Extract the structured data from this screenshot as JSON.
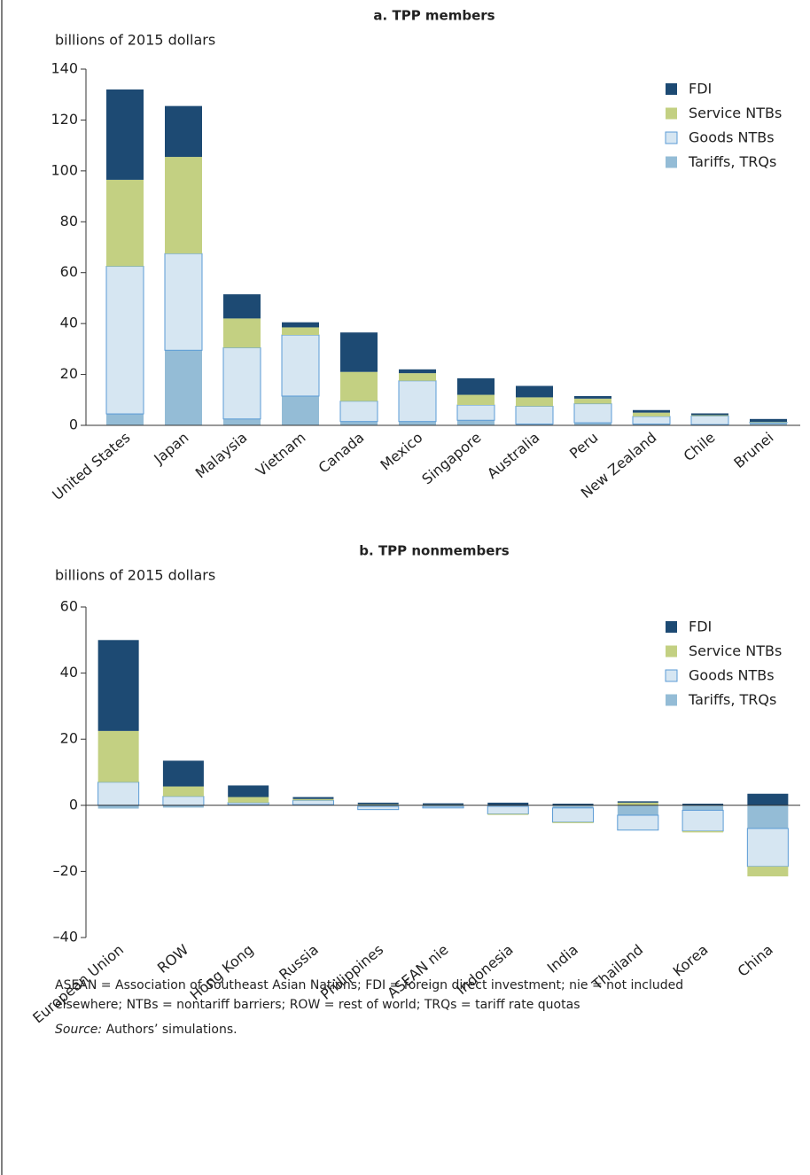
{
  "chart_data": [
    {
      "type": "stacked_bar",
      "title": "a. TPP members",
      "y_label": "billions of 2015 dollars",
      "categories": [
        "United States",
        "Japan",
        "Malaysia",
        "Vietnam",
        "Canada",
        "Mexico",
        "Singapore",
        "Australia",
        "Peru",
        "New Zealand",
        "Chile",
        "Brunei"
      ],
      "series": [
        {
          "name": "Tariffs, TRQs",
          "color": "#94bcd6",
          "values": [
            4.5,
            29.5,
            2.5,
            11.5,
            1.5,
            1.5,
            2,
            0.5,
            1,
            0.5,
            0.3,
            1
          ]
        },
        {
          "name": "Goods NTBs",
          "color": "#d6e6f2",
          "values": [
            58,
            38,
            28,
            24,
            8,
            16,
            6,
            7,
            7.5,
            3,
            3.4,
            0.2
          ]
        },
        {
          "name": "Service NTBs",
          "color": "#c3d082",
          "values": [
            34,
            38,
            11.5,
            3,
            11.5,
            3,
            4,
            3.5,
            2,
            1.5,
            0.3,
            0.2
          ]
        },
        {
          "name": "FDI",
          "color": "#1d4a73",
          "values": [
            35.5,
            20,
            9.5,
            2,
            15.5,
            1.5,
            6.5,
            4.5,
            1,
            1,
            0.7,
            1.1
          ]
        }
      ],
      "ylim": [
        0,
        140
      ],
      "yticks": [
        0,
        20,
        40,
        60,
        80,
        100,
        120,
        140
      ],
      "legend": "upper right"
    },
    {
      "type": "stacked_bar",
      "title": "b. TPP nonmembers",
      "y_label": "billions of 2015 dollars",
      "categories": [
        "European Union",
        "ROW",
        "Hong Kong",
        "Russia",
        "Philippines",
        "ASEAN nie",
        "Indonesia",
        "India",
        "Thailand",
        "Korea",
        "China"
      ],
      "series": [
        {
          "name": "Tariffs, TRQs",
          "color": "#94bcd6",
          "values": [
            -1,
            -0.7,
            0.2,
            0.2,
            -0.3,
            -0.3,
            -0.3,
            -0.8,
            -3,
            -1.5,
            -7
          ]
        },
        {
          "name": "Goods NTBs",
          "color": "#d6e6f2",
          "values": [
            7,
            2.7,
            0.6,
            1.3,
            -1,
            -0.5,
            -2.3,
            -4.3,
            -4.5,
            -6.3,
            -11.5
          ]
        },
        {
          "name": "Service NTBs",
          "color": "#c3d082",
          "values": [
            15.5,
            3,
            1.7,
            0.4,
            0.3,
            0.2,
            -0.3,
            -0.3,
            0.8,
            -0.4,
            -3
          ]
        },
        {
          "name": "FDI",
          "color": "#1d4a73",
          "values": [
            27.5,
            7.8,
            3.5,
            0.6,
            0.5,
            0.4,
            0.8,
            0.5,
            0.4,
            0.5,
            3.5
          ]
        }
      ],
      "ylim": [
        -40,
        60
      ],
      "yticks": [
        {
          "value": -40,
          "label": "–40"
        },
        {
          "value": -20,
          "label": "–20"
        },
        0,
        20,
        40,
        60
      ],
      "legend": "upper right"
    }
  ],
  "notes": {
    "lines": [
      "ASEAN = Association of Southeast Asian Nations; FDI = foreign direct investment; nie = not included",
      "elsewhere; NTBs = nontariff barriers; ROW = rest of world; TRQs = tariff rate quotas"
    ],
    "source_label": "Source:",
    "source_text": "Authors’ simulations."
  }
}
